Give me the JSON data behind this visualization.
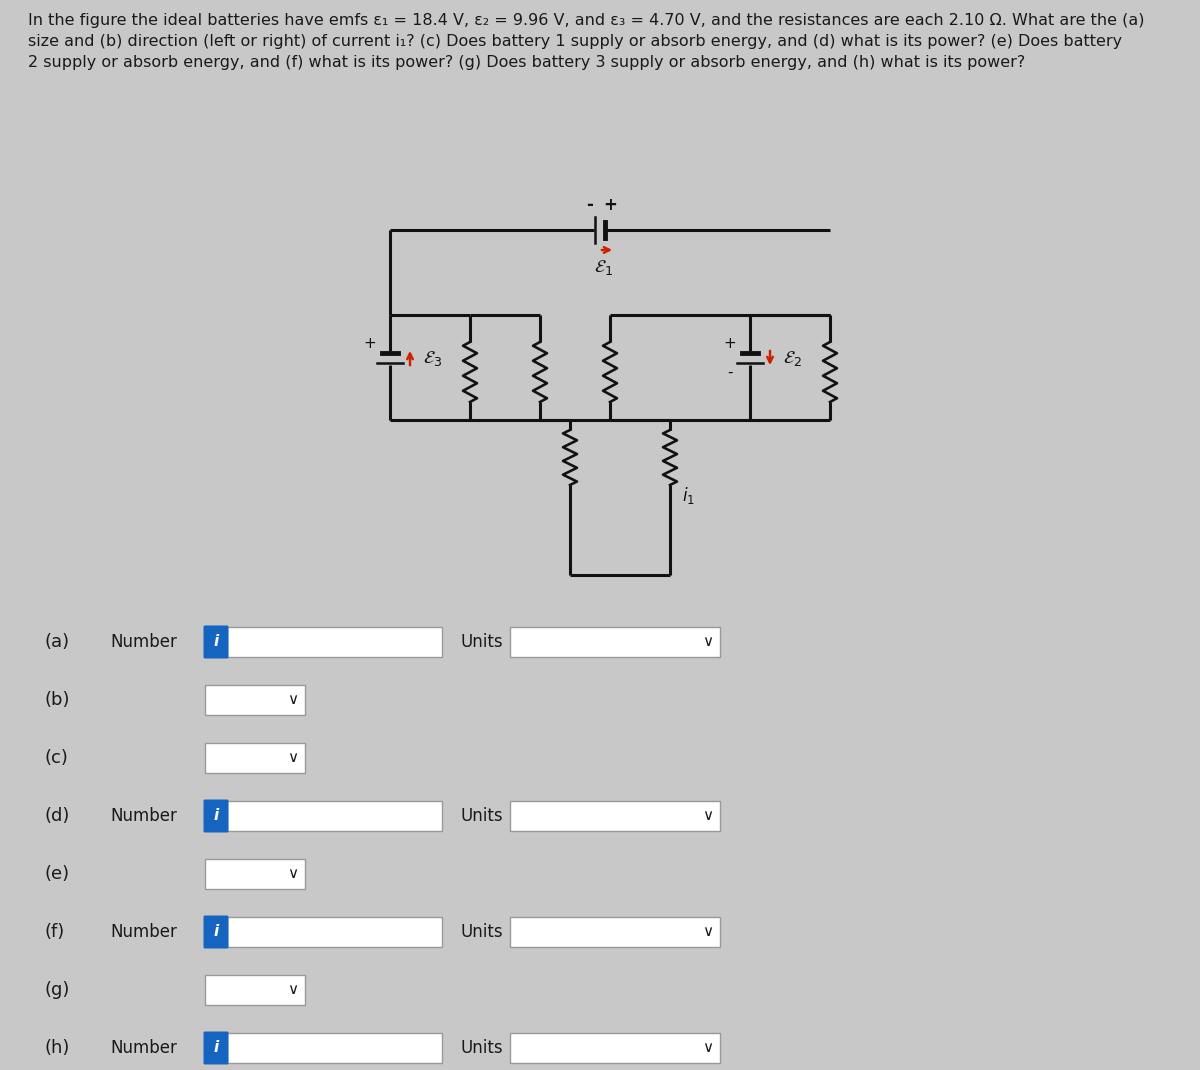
{
  "background_color": "#c8c8c8",
  "text_color": "#1a1a1a",
  "title_line1": "In the figure the ideal batteries have emfs ε₁ = 18.4 V, ε₂ = 9.96 V, and ε₃ = 4.70 V, and the resistances are each 2.10 Ω. What are the (a)",
  "title_line2": "size and (b) direction (left or right) of current i₁? (c) Does battery 1 supply or absorb energy, and (d) what is its power? (e) Does battery",
  "title_line3": "2 supply or absorb energy, and (f) what is its power? (g) Does battery 3 supply or absorb energy, and (h) what is its power?",
  "wire_color": "#111111",
  "arrow_color": "#cc2200",
  "blue_btn_color": "#1565c0",
  "input_bg": "#e0e0e0",
  "input_border": "#999999",
  "dropdown_bg": "#e8e8e8",
  "white_bg": "#ffffff",
  "form_rows": [
    {
      "label": "(a)",
      "type": "number_units"
    },
    {
      "label": "(b)",
      "type": "dropdown"
    },
    {
      "label": "(c)",
      "type": "dropdown"
    },
    {
      "label": "(d)",
      "type": "number_units"
    },
    {
      "label": "(e)",
      "type": "dropdown"
    },
    {
      "label": "(f)",
      "type": "number_units"
    },
    {
      "label": "(g)",
      "type": "dropdown"
    },
    {
      "label": "(h)",
      "type": "number_units"
    }
  ]
}
